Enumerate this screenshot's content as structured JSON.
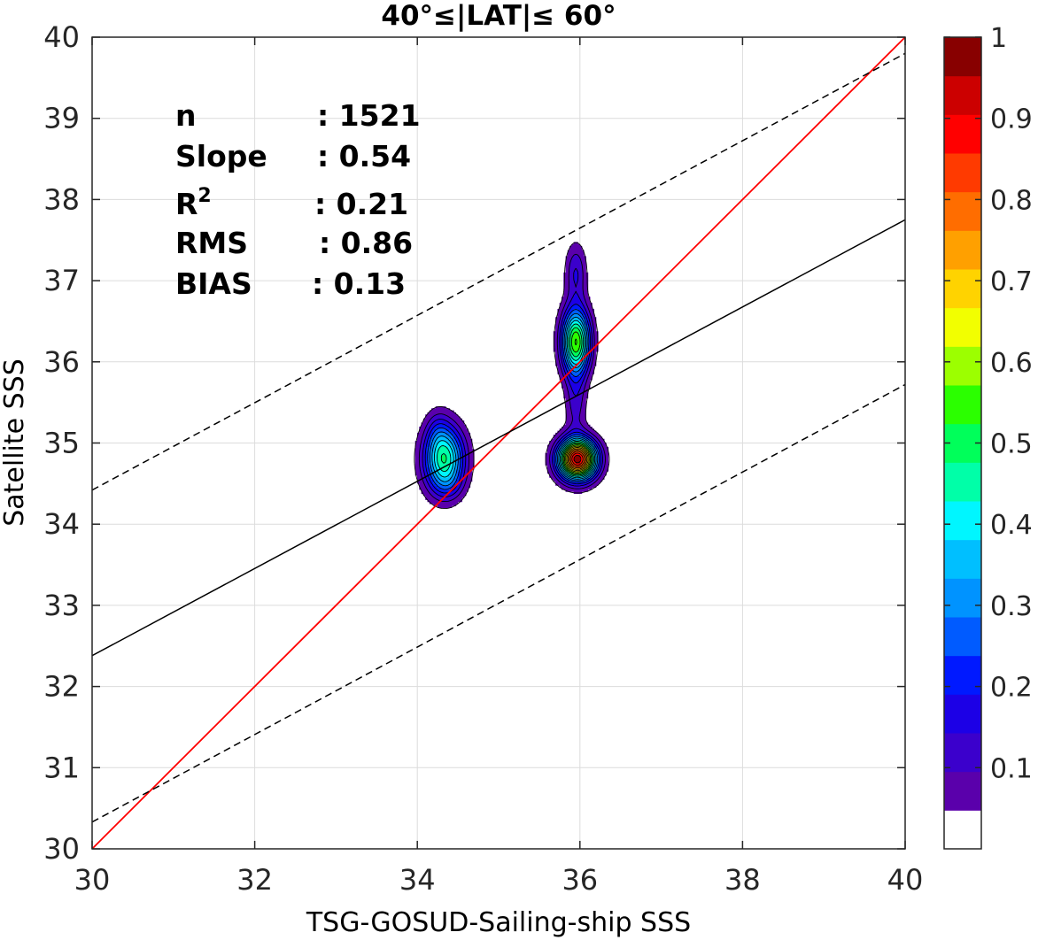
{
  "chart_data": {
    "type": "contour",
    "title": "40°≤|LAT|≤ 60°",
    "xlabel": "TSG-GOSUD-Sailing-ship SSS",
    "ylabel": "Satellite SSS",
    "xlim": [
      30,
      40
    ],
    "ylim": [
      30,
      40
    ],
    "xticks": [
      "30",
      "32",
      "34",
      "36",
      "38",
      "40"
    ],
    "yticks": [
      "30",
      "31",
      "32",
      "33",
      "34",
      "35",
      "36",
      "37",
      "38",
      "39",
      "40"
    ],
    "grid": true,
    "stats": [
      {
        "label": "n",
        "value": ": 1521"
      },
      {
        "label": "Slope",
        "value": ": 0.54"
      },
      {
        "label": "R",
        "sup": "2",
        "value": ": 0.21"
      },
      {
        "label": "RMS",
        "value": ": 0.86"
      },
      {
        "label": "BIAS",
        "value": ": 0.13"
      }
    ],
    "lines": [
      {
        "role": "one-to-one",
        "color": "#ff0000",
        "style": "solid",
        "points": [
          [
            30,
            30
          ],
          [
            40,
            40
          ]
        ]
      },
      {
        "role": "regression",
        "color": "#000000",
        "style": "solid",
        "points": [
          [
            30,
            32.38
          ],
          [
            40,
            37.75
          ]
        ]
      },
      {
        "role": "upper-bound",
        "color": "#000000",
        "style": "dashed",
        "points": [
          [
            30,
            34.42
          ],
          [
            40,
            39.8
          ]
        ]
      },
      {
        "role": "lower-bound",
        "color": "#000000",
        "style": "dashed",
        "points": [
          [
            30,
            30.33
          ],
          [
            40,
            35.72
          ]
        ]
      }
    ],
    "density_peaks": [
      {
        "x": 34.33,
        "y": 34.8,
        "sx": 0.17,
        "sy": 0.28,
        "amp": 0.5
      },
      {
        "x": 34.38,
        "y": 34.48,
        "sx": 0.12,
        "sy": 0.12,
        "amp": 0.05
      },
      {
        "x": 34.25,
        "y": 35.15,
        "sx": 0.1,
        "sy": 0.18,
        "amp": 0.07
      },
      {
        "x": 35.97,
        "y": 34.8,
        "sx": 0.16,
        "sy": 0.17,
        "amp": 0.98
      },
      {
        "x": 35.95,
        "y": 36.25,
        "sx": 0.12,
        "sy": 0.28,
        "amp": 0.6
      },
      {
        "x": 35.95,
        "y": 35.5,
        "sx": 0.09,
        "sy": 0.3,
        "amp": 0.12
      },
      {
        "x": 35.95,
        "y": 37.1,
        "sx": 0.09,
        "sy": 0.25,
        "amp": 0.15
      }
    ],
    "contour_levels": [
      0.05,
      0.1,
      0.15,
      0.2,
      0.25,
      0.3,
      0.35,
      0.4,
      0.45,
      0.5,
      0.55,
      0.6,
      0.65,
      0.7,
      0.75,
      0.8,
      0.85,
      0.9,
      0.95
    ],
    "colorbar": {
      "range": [
        0,
        1
      ],
      "ticks": [
        "0.1",
        "0.2",
        "0.3",
        "0.4",
        "0.5",
        "0.6",
        "0.7",
        "0.8",
        "0.9",
        "1"
      ],
      "colors": [
        "#ffffff",
        "#5a00ab",
        "#3b00cc",
        "#1c00e6",
        "#0019ff",
        "#005bff",
        "#0093ff",
        "#00bfff",
        "#00f6ff",
        "#00ffa8",
        "#00ff5a",
        "#2bff00",
        "#9cff00",
        "#f2ff00",
        "#ffd300",
        "#ffa000",
        "#ff6d00",
        "#ff3a00",
        "#ff0000",
        "#cc0000",
        "#880000"
      ]
    }
  }
}
